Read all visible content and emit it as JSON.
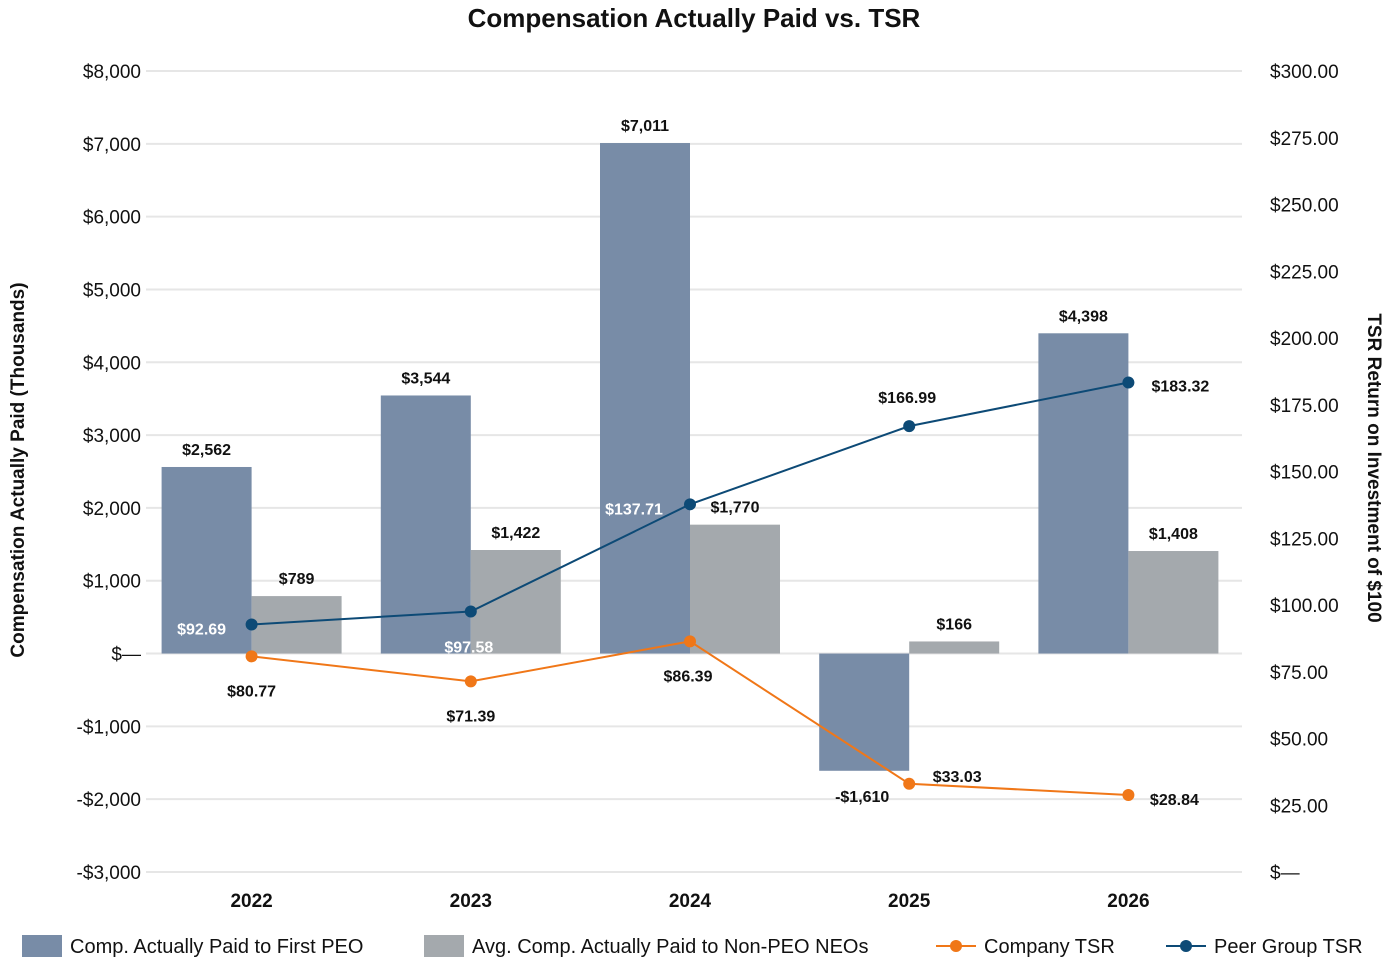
{
  "chart_data": {
    "type": "bar",
    "title": "Compensation Actually Paid vs. TSR",
    "categories": [
      "2022",
      "2023",
      "2024",
      "2025",
      "2026"
    ],
    "ylabel": "Compensation Actually Paid (Thousands)",
    "y2label": "TSR Return on Investment of $100",
    "ylim": [
      -3000,
      8000
    ],
    "y2lim": [
      0,
      300
    ],
    "y_ticks": [
      {
        "value": 8000,
        "label": "$8,000"
      },
      {
        "value": 7000,
        "label": "$7,000"
      },
      {
        "value": 6000,
        "label": "$6,000"
      },
      {
        "value": 5000,
        "label": "$5,000"
      },
      {
        "value": 4000,
        "label": "$4,000"
      },
      {
        "value": 3000,
        "label": "$3,000"
      },
      {
        "value": 2000,
        "label": "$2,000"
      },
      {
        "value": 1000,
        "label": "$1,000"
      },
      {
        "value": 0,
        "label": "$—"
      },
      {
        "value": -1000,
        "label": "-$1,000"
      },
      {
        "value": -2000,
        "label": "-$2,000"
      },
      {
        "value": -3000,
        "label": "-$3,000"
      }
    ],
    "y2_ticks": [
      {
        "value": 300,
        "label": "$300.00"
      },
      {
        "value": 275,
        "label": "$275.00"
      },
      {
        "value": 250,
        "label": "$250.00"
      },
      {
        "value": 225,
        "label": "$225.00"
      },
      {
        "value": 200,
        "label": "$200.00"
      },
      {
        "value": 175,
        "label": "$175.00"
      },
      {
        "value": 150,
        "label": "$150.00"
      },
      {
        "value": 125,
        "label": "$125.00"
      },
      {
        "value": 100,
        "label": "$100.00"
      },
      {
        "value": 75,
        "label": "$75.00"
      },
      {
        "value": 50,
        "label": "$50.00"
      },
      {
        "value": 25,
        "label": "$25.00"
      },
      {
        "value": 0,
        "label": "$—"
      }
    ],
    "grid": true,
    "legend_position": "bottom",
    "series": [
      {
        "name": "Comp. Actually Paid to First PEO",
        "kind": "bar",
        "axis": "left",
        "color": "#788ca7",
        "values": [
          2562,
          3544,
          7011,
          -1610,
          4398
        ],
        "labels": [
          "$2,562",
          "$3,544",
          "$7,011",
          "-$1,610",
          "$4,398"
        ]
      },
      {
        "name": "Avg. Comp. Actually Paid to Non-PEO NEOs",
        "kind": "bar",
        "axis": "left",
        "color": "#a4a9ad",
        "values": [
          789,
          1422,
          1770,
          166,
          1408
        ],
        "labels": [
          "$789",
          "$1,422",
          "$1,770",
          "$166",
          "$1,408"
        ]
      },
      {
        "name": "Company TSR",
        "kind": "line",
        "axis": "right",
        "color": "#f07718",
        "values": [
          80.77,
          71.39,
          86.39,
          33.03,
          28.84
        ],
        "labels": [
          "$80.77",
          "$71.39",
          "$86.39",
          "$33.03",
          "$28.84"
        ]
      },
      {
        "name": "Peer Group TSR",
        "kind": "line",
        "axis": "right",
        "color": "#0d4a76",
        "values": [
          92.69,
          97.58,
          137.71,
          166.99,
          183.32
        ],
        "labels": [
          "$92.69",
          "$97.58",
          "$137.71",
          "$166.99",
          "$183.32"
        ]
      }
    ]
  }
}
